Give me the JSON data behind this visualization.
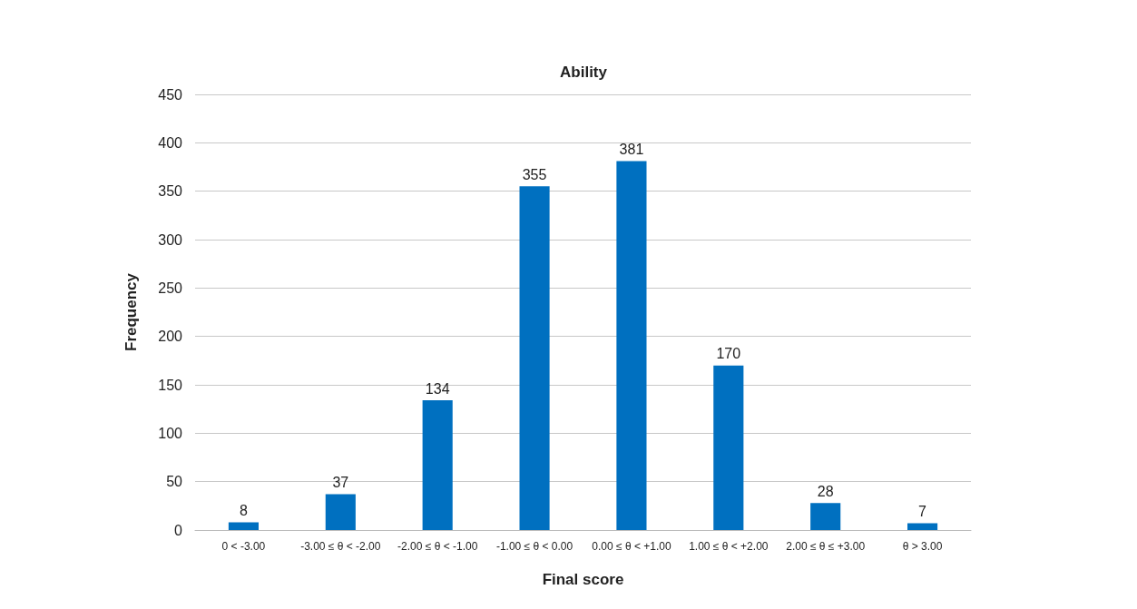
{
  "chart_data": {
    "type": "bar",
    "title": "Ability",
    "xlabel": "Final score",
    "ylabel": "Frequency",
    "categories": [
      "0 < -3.00",
      "-3.00 ≤ θ < -2.00",
      "-2.00 ≤ θ < -1.00",
      "-1.00 ≤ θ < 0.00",
      "0.00 ≤ θ < +1.00",
      "1.00 ≤ θ < +2.00",
      "2.00 ≤ θ ≤ +3.00",
      "θ > 3.00"
    ],
    "values": [
      8,
      37,
      134,
      355,
      381,
      170,
      28,
      7
    ],
    "color": "#0070c0",
    "ylim": [
      0,
      450
    ],
    "yticks": [
      0,
      50,
      100,
      150,
      200,
      250,
      300,
      350,
      400,
      450
    ],
    "grid": "y",
    "data_labels": true
  }
}
